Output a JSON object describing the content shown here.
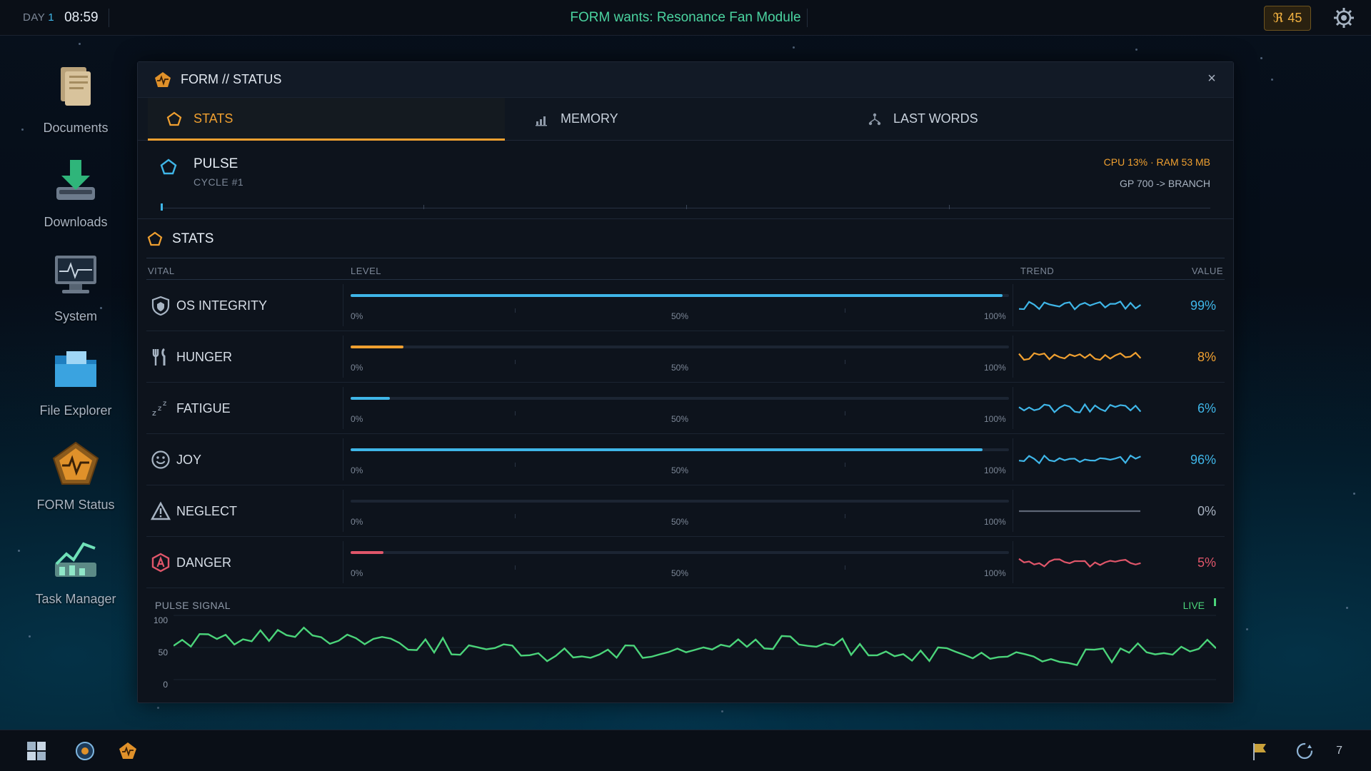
{
  "topbar": {
    "day_label": "DAY",
    "day_value": "1",
    "clock": "08:59",
    "notice": "FORM wants: Resonance Fan Module",
    "credits_symbol": "ℜ",
    "credits": "45",
    "settings_icon": "gear-icon"
  },
  "desktop": {
    "icons": [
      {
        "label": "Documents",
        "icon": "documents-icon"
      },
      {
        "label": "Downloads",
        "icon": "downloads-icon"
      },
      {
        "label": "System",
        "icon": "system-monitor-icon"
      },
      {
        "label": "File Explorer",
        "icon": "folder-icon"
      },
      {
        "label": "FORM Status",
        "icon": "form-status-icon"
      },
      {
        "label": "Task Manager",
        "icon": "task-manager-icon"
      }
    ]
  },
  "window": {
    "title": "FORM // STATUS",
    "close": "×",
    "tabs": [
      {
        "label": "STATS",
        "icon": "pentagon-icon",
        "active": true
      },
      {
        "label": "MEMORY",
        "icon": "bar-chart-icon",
        "active": false
      },
      {
        "label": "LAST WORDS",
        "icon": "branch-icon",
        "active": false
      }
    ],
    "pulse": {
      "name": "PULSE",
      "cycle": "CYCLE #1",
      "resources": "CPU 13% · RAM 53 MB",
      "gp": "GP 700  -> BRANCH"
    },
    "stats_heading": "STATS",
    "columns": {
      "vital": "VITAL",
      "level": "LEVEL",
      "trend": "TREND",
      "value": "VALUE"
    },
    "scale": {
      "min": "0%",
      "mid": "50%",
      "max": "100%"
    },
    "vitals": [
      {
        "name": "OS INTEGRITY",
        "value": "99%",
        "level": 99,
        "color": "#3fb6e8",
        "icon": "shield-icon"
      },
      {
        "name": "HUNGER",
        "value": "8%",
        "level": 8,
        "color": "#f0a030",
        "icon": "fork-knife-icon"
      },
      {
        "name": "FATIGUE",
        "value": "6%",
        "level": 6,
        "color": "#3fb6e8",
        "icon": "sleep-icon"
      },
      {
        "name": "JOY",
        "value": "96%",
        "level": 96,
        "color": "#3fb6e8",
        "icon": "smiley-icon"
      },
      {
        "name": "NEGLECT",
        "value": "0%",
        "level": 0,
        "color": "#8d95a3",
        "icon": "warning-icon"
      },
      {
        "name": "DANGER",
        "value": "5%",
        "level": 5,
        "color": "#e0566a",
        "icon": "danger-icon"
      }
    ],
    "signal": {
      "label": "PULSE SIGNAL",
      "live": "LIVE",
      "y_ticks": [
        "100",
        "50",
        "0"
      ],
      "color": "#4bd47a"
    }
  },
  "taskbar": {
    "items": [
      "start-icon",
      "form-core-icon",
      "form-status-icon"
    ],
    "tray": [
      "flag-icon",
      "sync-icon"
    ],
    "count": "7"
  }
}
